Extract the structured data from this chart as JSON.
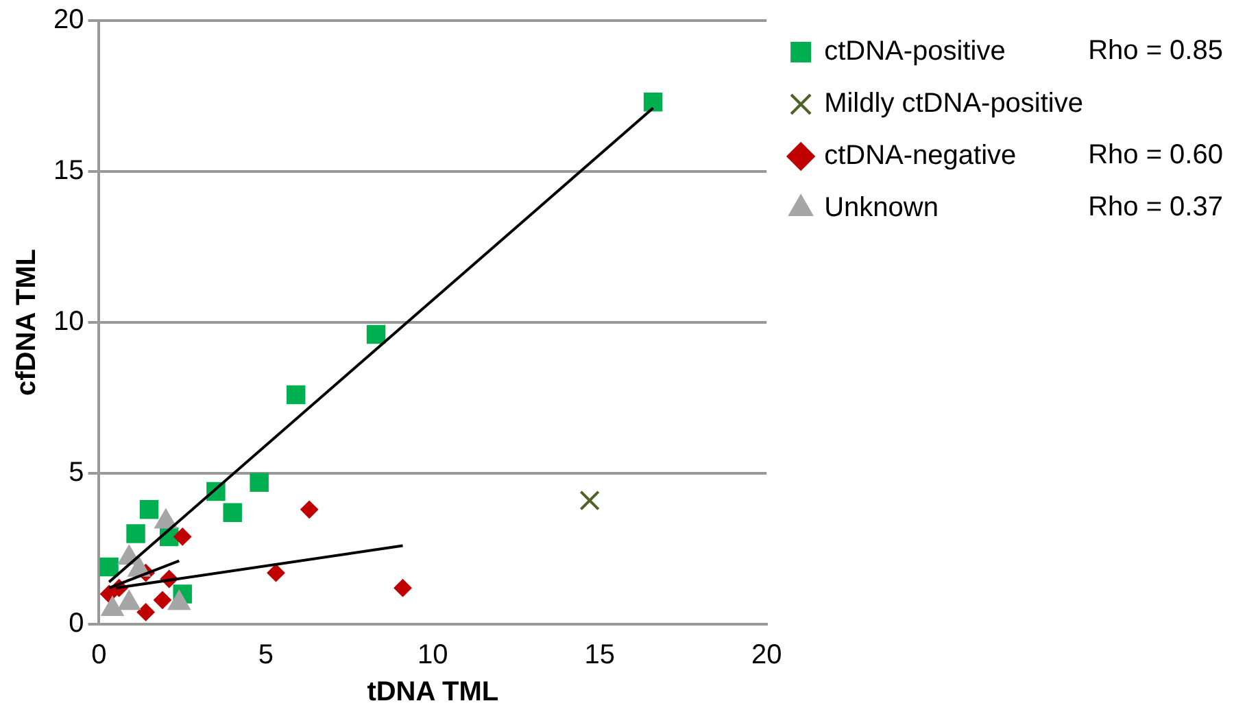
{
  "chart_data": {
    "type": "scatter",
    "xlabel": "tDNA TML",
    "ylabel": "cfDNA TML",
    "xlim": [
      0,
      20
    ],
    "xticks": [
      0,
      5,
      10,
      15,
      20
    ],
    "ylim": [
      0,
      20
    ],
    "yticks": [
      0,
      5,
      10,
      15,
      20
    ],
    "grid": "y",
    "legend": "right",
    "series": [
      {
        "name": "ctDNA-positive",
        "color": "#00b050",
        "marker": "square",
        "x": [
          16.6,
          8.3,
          5.9,
          4.8,
          3.5,
          4.0,
          1.5,
          1.1,
          2.1,
          0.3,
          2.5
        ],
        "values": [
          17.3,
          9.6,
          7.6,
          4.7,
          4.4,
          3.7,
          3.8,
          3.0,
          2.9,
          1.9,
          1.0
        ]
      },
      {
        "name": "Mildly ctDNA-positive",
        "color": "#4f6228",
        "marker": "cross",
        "x": [
          14.7
        ],
        "values": [
          4.1
        ]
      },
      {
        "name": "ctDNA-negative",
        "color": "#c00000",
        "marker": "diamond",
        "x": [
          6.3,
          5.3,
          9.1,
          2.5,
          2.1,
          1.9,
          1.4,
          1.4,
          0.3,
          0.6
        ],
        "values": [
          3.8,
          1.7,
          1.2,
          2.9,
          1.5,
          0.8,
          0.4,
          1.7,
          1.0,
          1.2
        ]
      },
      {
        "name": "Unknown",
        "color": "#a6a6a6",
        "marker": "triangle",
        "x": [
          2.0,
          0.9,
          1.2,
          0.9,
          0.4,
          2.4
        ],
        "values": [
          3.4,
          2.2,
          1.8,
          0.7,
          0.5,
          0.7
        ]
      },
      {
        "type": "line",
        "color": "#000000",
        "marker": "none",
        "x": [
          0.3,
          16.6
        ],
        "values": [
          1.4,
          17.1
        ]
      },
      {
        "type": "line",
        "color": "#000000",
        "marker": "none",
        "x": [
          0.5,
          9.1
        ],
        "values": [
          1.2,
          2.6
        ]
      },
      {
        "type": "line",
        "color": "#000000",
        "marker": "none",
        "x": [
          0.3,
          2.4
        ],
        "values": [
          1.2,
          2.1
        ]
      }
    ],
    "annotations": [
      "Rho = 0.85",
      "Rho = 0.60",
      "Rho = 0.37"
    ]
  }
}
